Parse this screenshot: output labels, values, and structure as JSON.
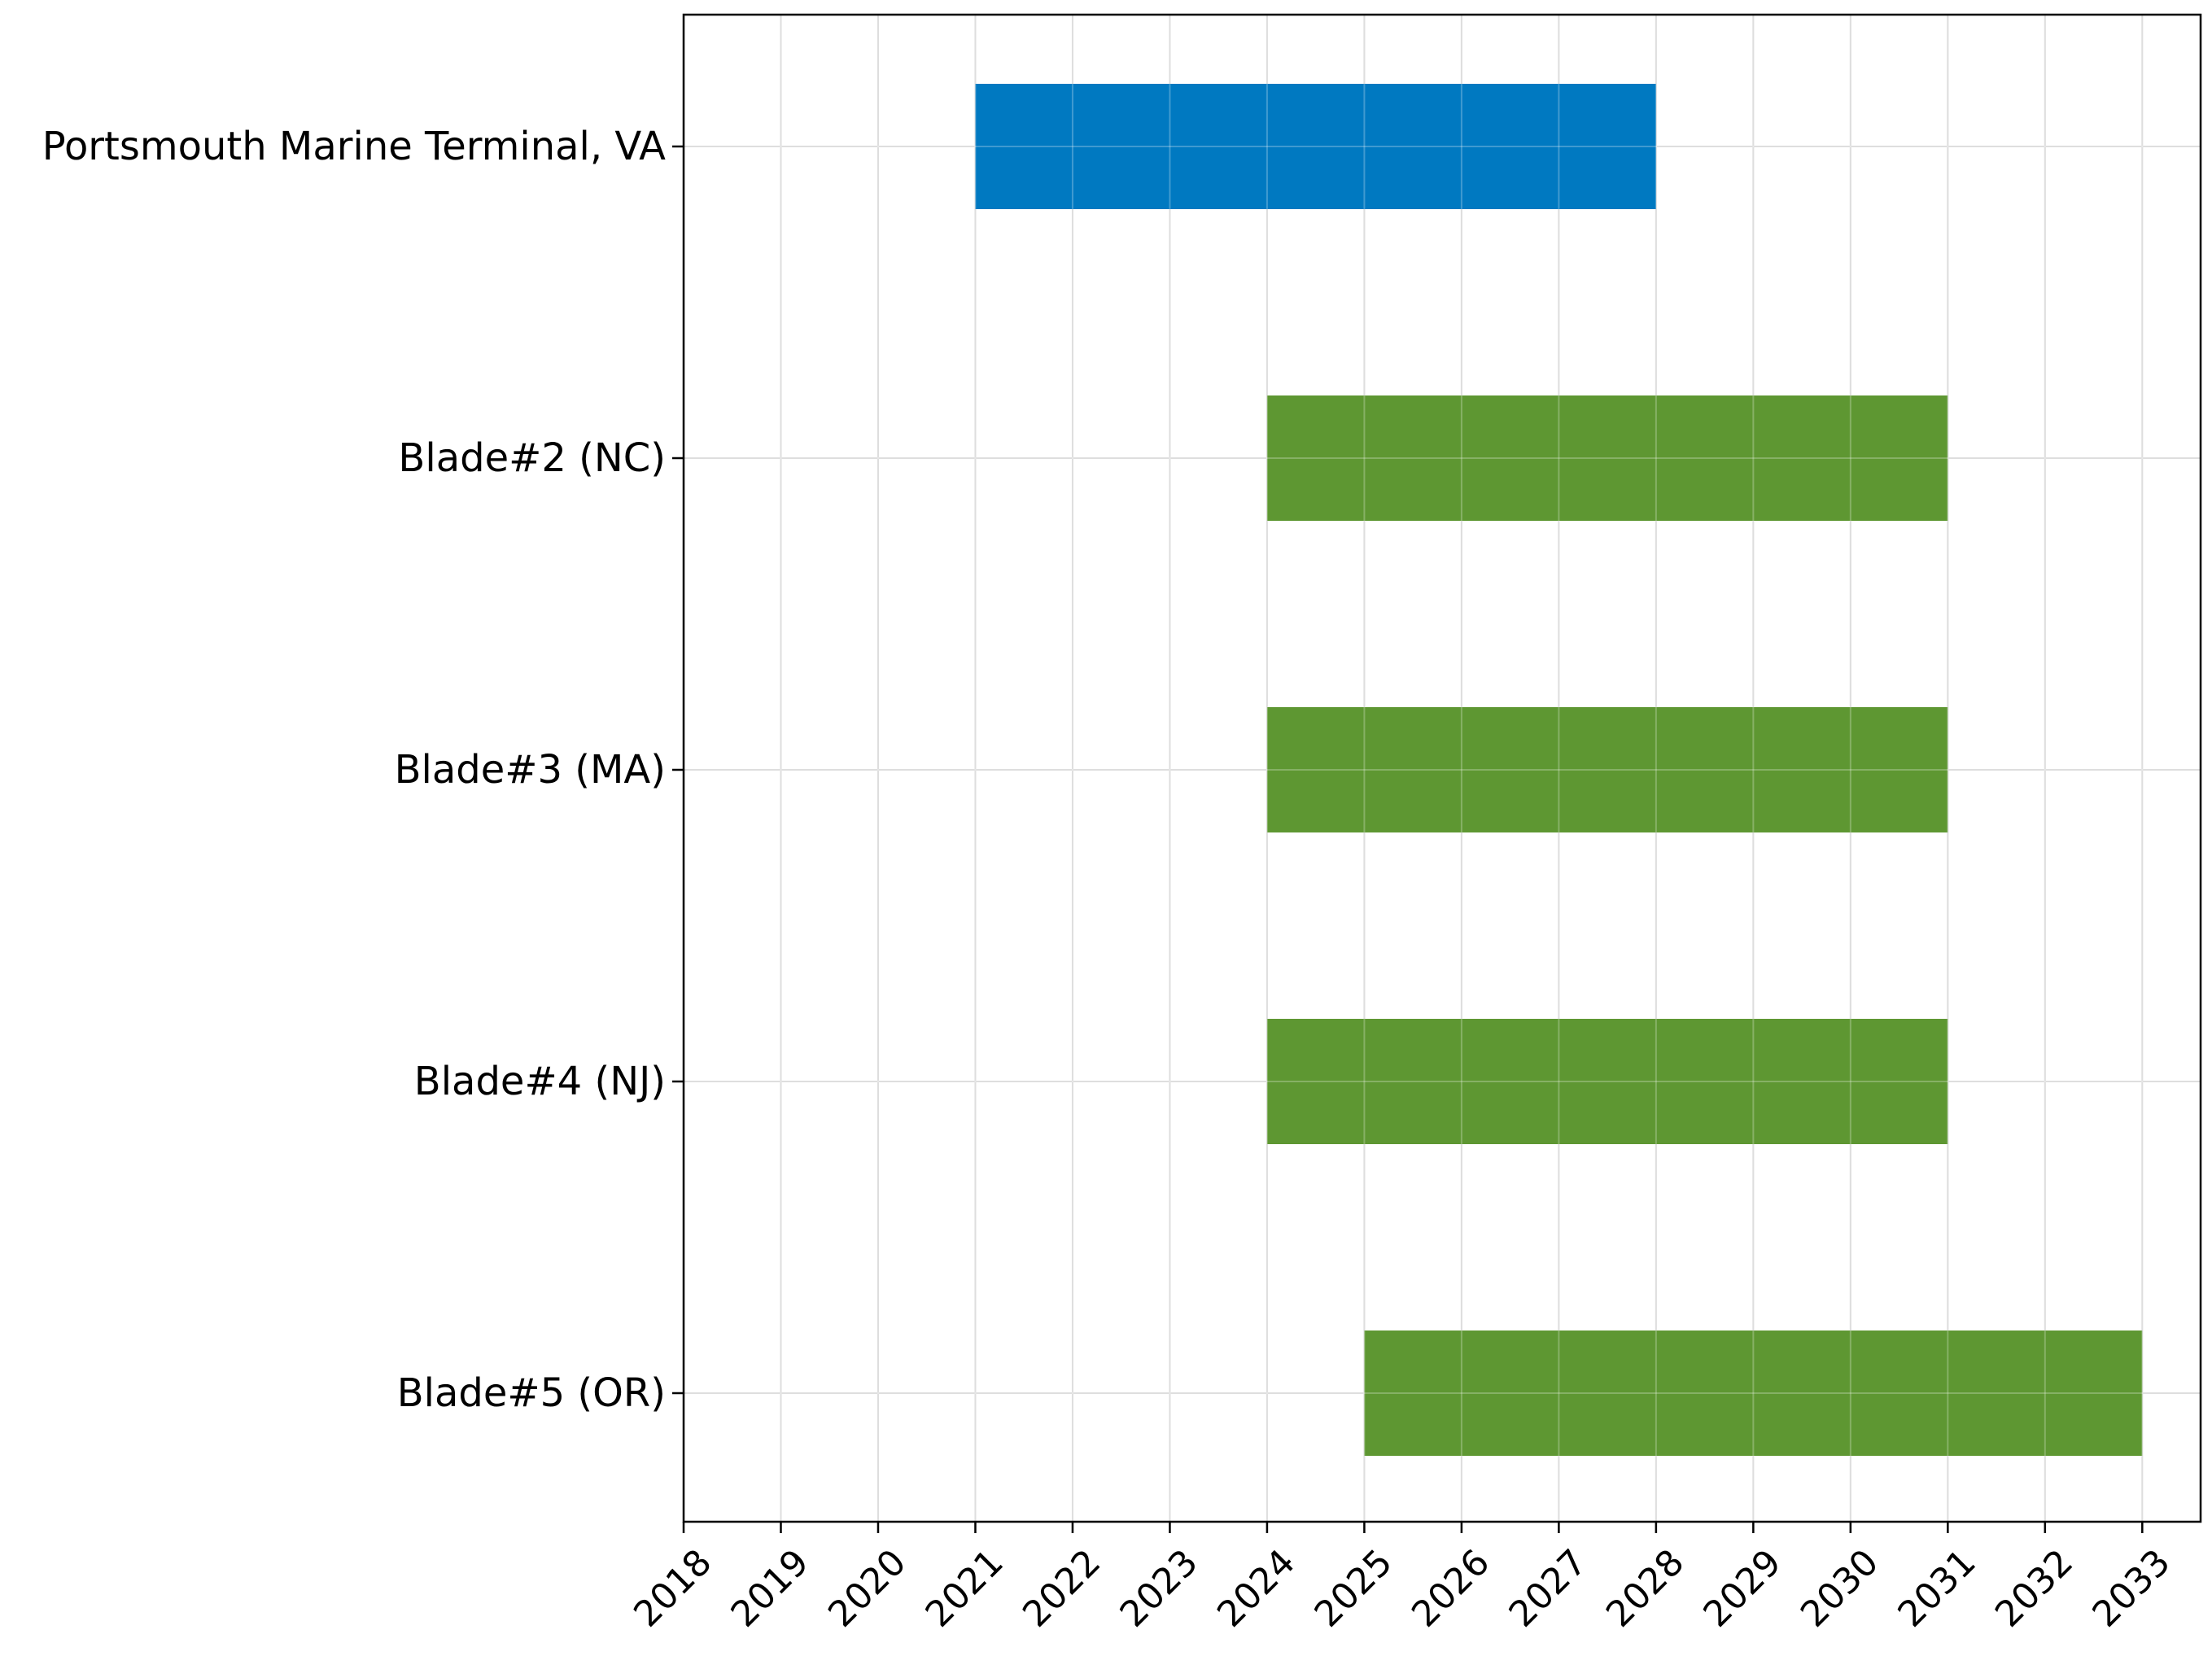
{
  "chart_data": {
    "type": "gantt",
    "title": "",
    "xlabel": "",
    "ylabel": "",
    "x_ticks": [
      "2018",
      "2019",
      "2020",
      "2021",
      "2022",
      "2023",
      "2024",
      "2025",
      "2026",
      "2027",
      "2028",
      "2029",
      "2030",
      "2031",
      "2032",
      "2033"
    ],
    "xlim": [
      2018,
      2033.6
    ],
    "grid": true,
    "bars": [
      {
        "label": "Portsmouth Marine Terminal, VA",
        "start": 2021,
        "end": 2028,
        "color": "#0079C1"
      },
      {
        "label": "Blade#2 (NC)",
        "start": 2024,
        "end": 2031,
        "color": "#5E9732"
      },
      {
        "label": "Blade#3 (MA)",
        "start": 2024,
        "end": 2031,
        "color": "#5E9732"
      },
      {
        "label": "Blade#4 (NJ)",
        "start": 2024,
        "end": 2031,
        "color": "#5E9732"
      },
      {
        "label": "Blade#5 (OR)",
        "start": 2025,
        "end": 2033,
        "color": "#5E9732"
      }
    ]
  }
}
